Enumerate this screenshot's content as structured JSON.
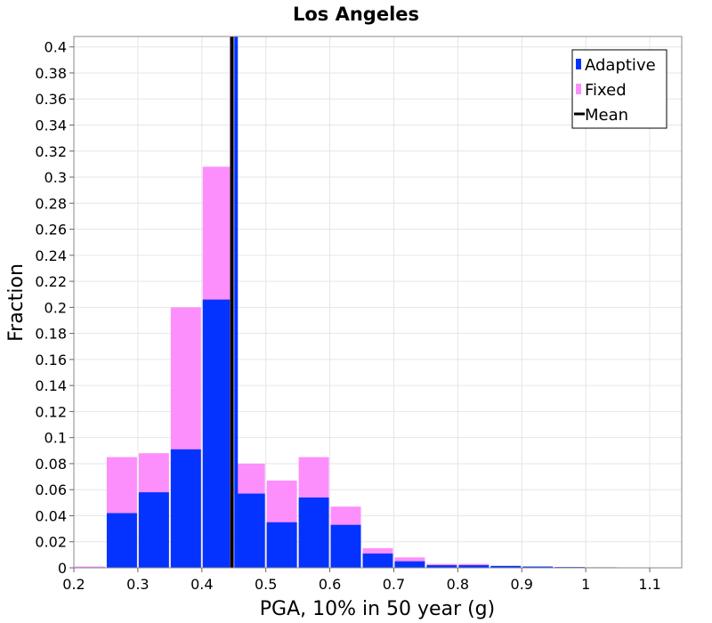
{
  "chart_data": {
    "type": "bar",
    "title": "Los Angeles",
    "xlabel": "PGA, 10% in 50 year (g)",
    "ylabel": "Fraction",
    "xlim": [
      0.2,
      1.15
    ],
    "ylim": [
      0,
      0.408
    ],
    "xticks": [
      "0.2",
      "0.3",
      "0.4",
      "0.5",
      "0.6",
      "0.7",
      "0.8",
      "0.9",
      "1",
      "1.1"
    ],
    "yticks": [
      "0",
      "0.02",
      "0.04",
      "0.06",
      "0.08",
      "0.1",
      "0.12",
      "0.14",
      "0.16",
      "0.18",
      "0.2",
      "0.22",
      "0.24",
      "0.26",
      "0.28",
      "0.3",
      "0.32",
      "0.34",
      "0.36",
      "0.38",
      "0.4"
    ],
    "grid": true,
    "legend_position": "top-right",
    "bin_width": 0.05,
    "bin_starts": [
      0.2,
      0.25,
      0.3,
      0.35,
      0.4,
      0.45,
      0.5,
      0.55,
      0.6,
      0.65,
      0.7,
      0.75,
      0.8,
      0.85,
      0.9,
      0.95,
      1.0,
      1.05,
      1.1
    ],
    "series": [
      {
        "name": "Fixed",
        "color": "#fc8ffc",
        "values": [
          0.001,
          0.085,
          0.088,
          0.2,
          0.308,
          0.08,
          0.067,
          0.085,
          0.047,
          0.015,
          0.008,
          0.003,
          0.003,
          0.001,
          0.001,
          0.0005,
          0.0003,
          0.0002,
          0.0001
        ]
      },
      {
        "name": "Adaptive",
        "color": "#0433ff",
        "values": [
          0,
          0.042,
          0.058,
          0.091,
          0.206,
          0.057,
          0.035,
          0.054,
          0.033,
          0.011,
          0.005,
          0.002,
          0.002,
          0.0015,
          0.001,
          0.0006,
          0.0004,
          0.0002,
          0.0001
        ]
      }
    ],
    "mean_lines": [
      {
        "series": "Fixed",
        "x": 0.4465,
        "color": "#fc8ffc"
      },
      {
        "series": "Mean",
        "x": 0.447,
        "color": "#000000"
      },
      {
        "series": "Adaptive",
        "x": 0.4535,
        "color": "#0433ff"
      }
    ],
    "legend": [
      {
        "label": "Adaptive",
        "color": "#0433ff",
        "kind": "box"
      },
      {
        "label": "Fixed",
        "color": "#fc8ffc",
        "kind": "box"
      },
      {
        "label": "Mean",
        "color": "#000000",
        "kind": "line"
      }
    ]
  }
}
